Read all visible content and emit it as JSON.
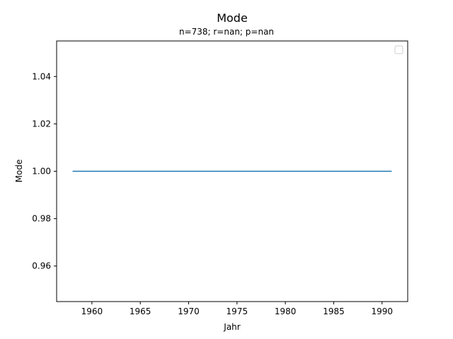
{
  "chart_data": {
    "type": "line",
    "title": "Mode",
    "subtitle": "n=738; r=nan; p=nan",
    "xlabel": "Jahr",
    "ylabel": "Mode",
    "xlim": [
      1956.35,
      1992.65
    ],
    "ylim": [
      0.945,
      1.055
    ],
    "xticks": [
      1960,
      1965,
      1970,
      1975,
      1980,
      1985,
      1990
    ],
    "xtick_labels": [
      "1960",
      "1965",
      "1970",
      "1975",
      "1980",
      "1985",
      "1990"
    ],
    "yticks": [
      0.96,
      0.98,
      1.0,
      1.02,
      1.04
    ],
    "ytick_labels": [
      "0.96",
      "0.98",
      "1.00",
      "1.02",
      "1.04"
    ],
    "series": [
      {
        "x": [
          1958,
          1991
        ],
        "y": [
          1.0,
          1.0
        ],
        "color": "#1f77b4"
      }
    ],
    "legend": {
      "placement": "top-right",
      "entries": []
    },
    "grid": false
  }
}
